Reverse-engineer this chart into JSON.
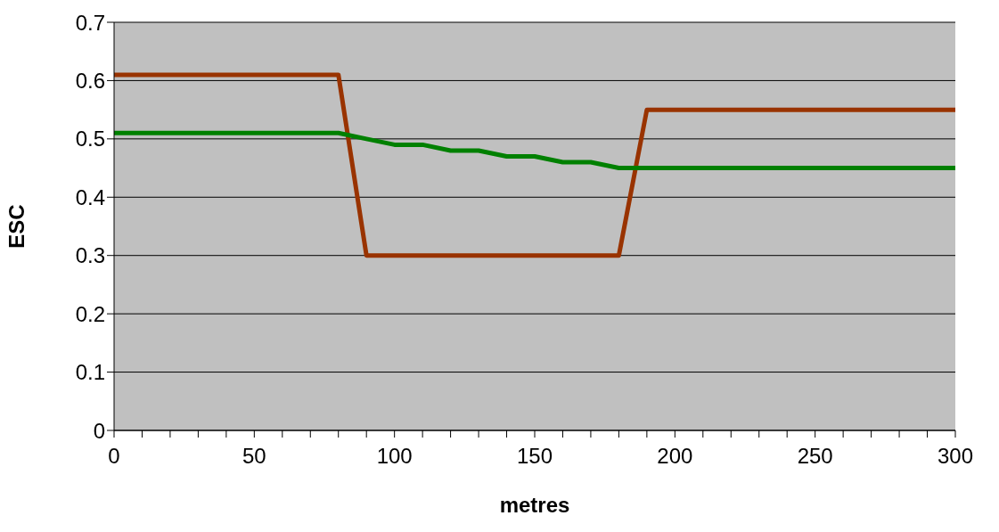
{
  "chart_data": {
    "type": "line",
    "xlabel": "metres",
    "ylabel": "ESC",
    "x": [
      0,
      10,
      20,
      30,
      40,
      50,
      60,
      70,
      80,
      90,
      100,
      110,
      120,
      130,
      140,
      150,
      160,
      170,
      180,
      190,
      200,
      210,
      220,
      230,
      240,
      250,
      260,
      270,
      280,
      290,
      300
    ],
    "series": [
      {
        "color": "#993300",
        "values": [
          0.61,
          0.61,
          0.61,
          0.61,
          0.61,
          0.61,
          0.61,
          0.61,
          0.61,
          0.3,
          0.3,
          0.3,
          0.3,
          0.3,
          0.3,
          0.3,
          0.3,
          0.3,
          0.3,
          0.55,
          0.55,
          0.55,
          0.55,
          0.55,
          0.55,
          0.55,
          0.55,
          0.55,
          0.55,
          0.55,
          0.55
        ]
      },
      {
        "color": "#008000",
        "values": [
          0.51,
          0.51,
          0.51,
          0.51,
          0.51,
          0.51,
          0.51,
          0.51,
          0.51,
          0.5,
          0.49,
          0.49,
          0.48,
          0.48,
          0.47,
          0.47,
          0.46,
          0.46,
          0.45,
          0.45,
          0.45,
          0.45,
          0.45,
          0.45,
          0.45,
          0.45,
          0.45,
          0.45,
          0.45,
          0.45,
          0.45
        ]
      }
    ],
    "xlim": [
      0,
      300
    ],
    "xticks": [
      0,
      {
        "value": 10,
        "label": null
      },
      {
        "value": 20,
        "label": null
      },
      {
        "value": 30,
        "label": null
      },
      {
        "value": 40,
        "label": null
      },
      50,
      {
        "value": 60,
        "label": null
      },
      {
        "value": 70,
        "label": null
      },
      {
        "value": 80,
        "label": null
      },
      {
        "value": 90,
        "label": null
      },
      100,
      {
        "value": 110,
        "label": null
      },
      {
        "value": 120,
        "label": null
      },
      {
        "value": 130,
        "label": null
      },
      {
        "value": 140,
        "label": null
      },
      150,
      {
        "value": 160,
        "label": null
      },
      {
        "value": 170,
        "label": null
      },
      {
        "value": 180,
        "label": null
      },
      {
        "value": 190,
        "label": null
      },
      200,
      {
        "value": 210,
        "label": null
      },
      {
        "value": 220,
        "label": null
      },
      {
        "value": 230,
        "label": null
      },
      {
        "value": 240,
        "label": null
      },
      250,
      {
        "value": 260,
        "label": null
      },
      {
        "value": 270,
        "label": null
      },
      {
        "value": 280,
        "label": null
      },
      {
        "value": 290,
        "label": null
      },
      300
    ],
    "ylim": [
      0,
      0.7
    ],
    "yticks": [
      0,
      0.1,
      0.2,
      0.3,
      0.4,
      0.5,
      0.6,
      0.7
    ],
    "grid": "y",
    "line_style": "solid"
  }
}
